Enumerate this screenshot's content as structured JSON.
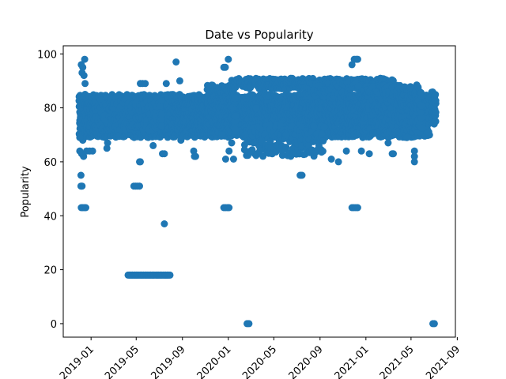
{
  "chart_data": {
    "type": "scatter",
    "title": "Date vs Popularity",
    "xlabel": "",
    "ylabel": "Popularity",
    "xlim": [
      "2018-10-19",
      "2021-08-27"
    ],
    "ylim": [
      -5,
      103
    ],
    "grid": false,
    "marker_color": "#1f77b4",
    "x_ticks": [
      "2019-01",
      "2019-05",
      "2019-09",
      "2020-01",
      "2020-05",
      "2020-09",
      "2021-01",
      "2021-05",
      "2021-09"
    ],
    "y_ticks": [
      0,
      20,
      40,
      60,
      80,
      100
    ],
    "bands": [
      {
        "x_start": "2018-12-01",
        "x_end": "2021-06-20",
        "y_min": 70,
        "y_max": 85,
        "step_days": 3,
        "y_step": 2
      },
      {
        "x_start": "2019-01-10",
        "x_end": "2019-07-10",
        "y_min": 73,
        "y_max": 82,
        "step_days": 4,
        "y_step": 3
      },
      {
        "x_start": "2019-11-05",
        "x_end": "2020-01-20",
        "y_min": 72,
        "y_max": 89,
        "step_days": 2,
        "y_step": 3
      },
      {
        "x_start": "2020-01-10",
        "x_end": "2021-03-15",
        "y_min": 88,
        "y_max": 91,
        "step_days": 3,
        "y_step": 2
      },
      {
        "x_start": "2020-07-20",
        "x_end": "2020-12-30",
        "y_min": 85,
        "y_max": 88,
        "step_days": 4,
        "y_step": 3
      },
      {
        "x_start": "2020-02-15",
        "x_end": "2020-09-10",
        "y_min": 64,
        "y_max": 74,
        "step_days": 4,
        "y_step": 4
      },
      {
        "x_start": "2020-12-20",
        "x_end": "2021-05-30",
        "y_min": 72,
        "y_max": 88,
        "step_days": 3,
        "y_step": 3
      },
      {
        "x_start": "2021-06-25",
        "x_end": "2021-07-05",
        "y_min": 75,
        "y_max": 85,
        "step_days": 2,
        "y_step": 2
      },
      {
        "x_start": "2019-04-10",
        "x_end": "2019-07-30",
        "y_min": 18,
        "y_max": 18,
        "step_days": 2,
        "y_step": 1
      }
    ],
    "points": [
      {
        "x": "2018-12-06",
        "y": 96
      },
      {
        "x": "2018-12-10",
        "y": 95
      },
      {
        "x": "2018-12-15",
        "y": 98
      },
      {
        "x": "2018-12-08",
        "y": 93
      },
      {
        "x": "2018-12-13",
        "y": 92
      },
      {
        "x": "2018-12-16",
        "y": 89
      },
      {
        "x": "2018-12-02",
        "y": 64
      },
      {
        "x": "2018-12-07",
        "y": 63
      },
      {
        "x": "2018-12-12",
        "y": 62
      },
      {
        "x": "2018-12-20",
        "y": 64
      },
      {
        "x": "2018-12-28",
        "y": 64
      },
      {
        "x": "2019-01-05",
        "y": 64
      },
      {
        "x": "2018-12-05",
        "y": 55
      },
      {
        "x": "2018-12-05",
        "y": 51
      },
      {
        "x": "2018-12-08",
        "y": 51
      },
      {
        "x": "2018-12-06",
        "y": 43
      },
      {
        "x": "2018-12-10",
        "y": 43
      },
      {
        "x": "2018-12-14",
        "y": 43
      },
      {
        "x": "2018-12-18",
        "y": 43
      },
      {
        "x": "2018-12-10",
        "y": 68
      },
      {
        "x": "2018-12-02",
        "y": 69
      },
      {
        "x": "2019-02-12",
        "y": 65
      },
      {
        "x": "2019-02-14",
        "y": 67
      },
      {
        "x": "2019-04-25",
        "y": 51
      },
      {
        "x": "2019-04-30",
        "y": 51
      },
      {
        "x": "2019-05-05",
        "y": 51
      },
      {
        "x": "2019-05-10",
        "y": 51
      },
      {
        "x": "2019-05-10",
        "y": 60
      },
      {
        "x": "2019-05-12",
        "y": 60
      },
      {
        "x": "2019-05-12",
        "y": 89
      },
      {
        "x": "2019-05-18",
        "y": 89
      },
      {
        "x": "2019-05-25",
        "y": 89
      },
      {
        "x": "2019-06-15",
        "y": 66
      },
      {
        "x": "2019-07-10",
        "y": 63
      },
      {
        "x": "2019-07-15",
        "y": 63
      },
      {
        "x": "2019-07-15",
        "y": 37
      },
      {
        "x": "2019-07-20",
        "y": 89
      },
      {
        "x": "2019-08-15",
        "y": 97
      },
      {
        "x": "2019-08-25",
        "y": 90
      },
      {
        "x": "2019-08-28",
        "y": 68
      },
      {
        "x": "2019-10-01",
        "y": 64
      },
      {
        "x": "2019-10-03",
        "y": 62
      },
      {
        "x": "2019-10-06",
        "y": 62
      },
      {
        "x": "2019-12-20",
        "y": 43
      },
      {
        "x": "2019-12-25",
        "y": 43
      },
      {
        "x": "2019-12-30",
        "y": 43
      },
      {
        "x": "2020-01-03",
        "y": 43
      },
      {
        "x": "2019-12-25",
        "y": 61
      },
      {
        "x": "2019-12-15",
        "y": 70
      },
      {
        "x": "2019-12-20",
        "y": 95
      },
      {
        "x": "2019-12-24",
        "y": 95
      },
      {
        "x": "2020-01-01",
        "y": 98
      },
      {
        "x": "2020-01-03",
        "y": 64
      },
      {
        "x": "2020-01-10",
        "y": 67
      },
      {
        "x": "2020-01-15",
        "y": 61
      },
      {
        "x": "2020-01-20",
        "y": 72
      },
      {
        "x": "2020-02-20",
        "y": 0
      },
      {
        "x": "2020-02-25",
        "y": 0
      },
      {
        "x": "2020-03-15",
        "y": 80
      },
      {
        "x": "2020-07-10",
        "y": 55
      },
      {
        "x": "2020-07-15",
        "y": 55
      },
      {
        "x": "2020-10-01",
        "y": 61
      },
      {
        "x": "2020-10-20",
        "y": 60
      },
      {
        "x": "2020-11-10",
        "y": 64
      },
      {
        "x": "2020-11-25",
        "y": 43
      },
      {
        "x": "2020-11-30",
        "y": 43
      },
      {
        "x": "2020-12-05",
        "y": 43
      },
      {
        "x": "2020-12-10",
        "y": 43
      },
      {
        "x": "2020-11-25",
        "y": 96
      },
      {
        "x": "2020-12-01",
        "y": 98
      },
      {
        "x": "2020-12-06",
        "y": 98
      },
      {
        "x": "2020-12-10",
        "y": 98
      },
      {
        "x": "2020-12-12",
        "y": 88
      },
      {
        "x": "2020-12-20",
        "y": 64
      },
      {
        "x": "2021-01-10",
        "y": 63
      },
      {
        "x": "2021-03-01",
        "y": 67
      },
      {
        "x": "2021-03-12",
        "y": 63
      },
      {
        "x": "2021-03-15",
        "y": 63
      },
      {
        "x": "2021-04-20",
        "y": 69
      },
      {
        "x": "2021-05-10",
        "y": 64
      },
      {
        "x": "2021-05-10",
        "y": 62
      },
      {
        "x": "2021-05-10",
        "y": 60
      },
      {
        "x": "2021-06-28",
        "y": 0
      },
      {
        "x": "2021-07-02",
        "y": 0
      }
    ]
  }
}
